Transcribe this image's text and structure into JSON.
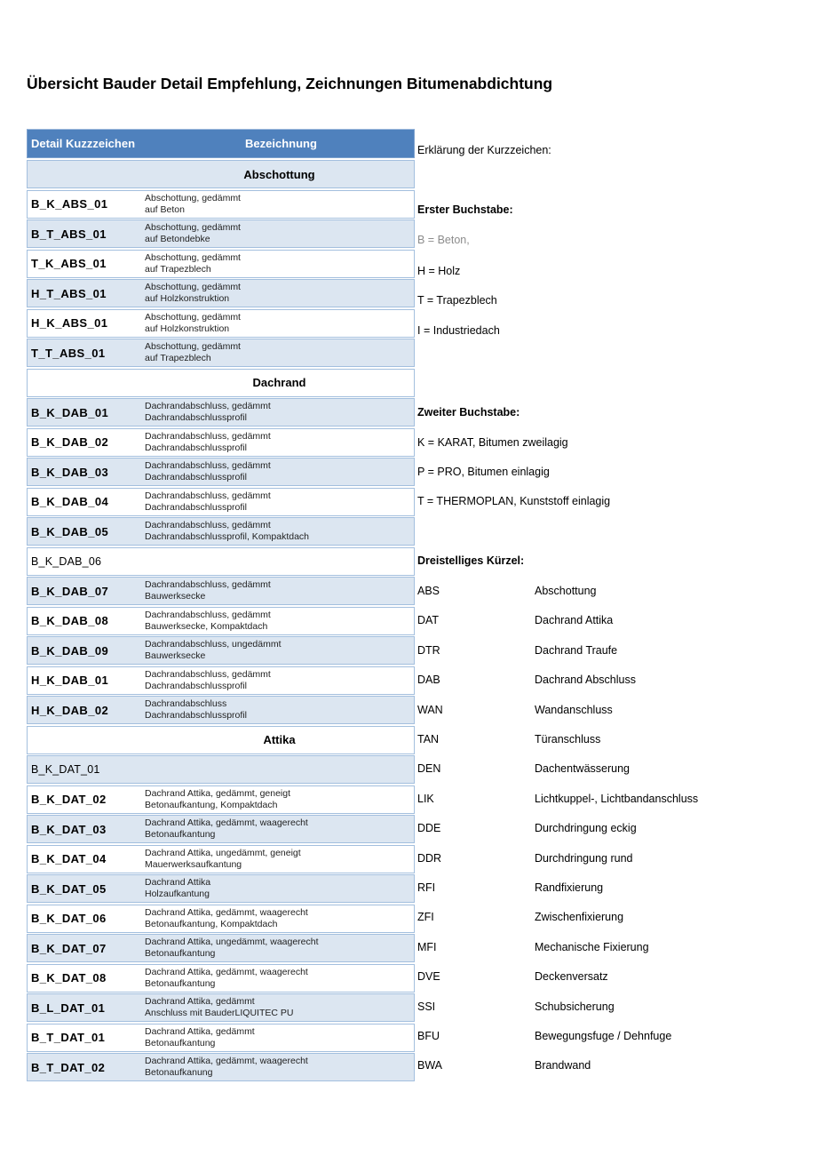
{
  "page": {
    "title": "Übersicht Bauder Detail Empfehlung, Zeichnungen Bitumenabdichtung"
  },
  "table": {
    "header": {
      "col1": "Detail Kuzzzeichen",
      "col2": "Bezeichnung"
    },
    "rows": [
      {
        "kind": "section",
        "label": "Abschottung",
        "shade": true
      },
      {
        "kind": "item",
        "code": "B_K_ABS_01",
        "bold": true,
        "shade": false,
        "lines": [
          "Abschottung, gedämmt",
          "auf Beton"
        ]
      },
      {
        "kind": "item",
        "code": "B_T_ABS_01",
        "bold": true,
        "shade": true,
        "lines": [
          "Abschottung, gedämmt",
          "auf Betondebke"
        ]
      },
      {
        "kind": "item",
        "code": "T_K_ABS_01",
        "bold": true,
        "shade": false,
        "lines": [
          "Abschottung, gedämmt",
          "auf Trapezblech"
        ]
      },
      {
        "kind": "item",
        "code": "H_T_ABS_01",
        "bold": true,
        "shade": true,
        "lines": [
          "Abschottung, gedämmt",
          "auf Holzkonstruktion"
        ]
      },
      {
        "kind": "item",
        "code": "H_K_ABS_01",
        "bold": true,
        "shade": false,
        "lines": [
          "Abschottung, gedämmt",
          "auf Holzkonstruktion"
        ]
      },
      {
        "kind": "item",
        "code": "T_T_ABS_01",
        "bold": true,
        "shade": true,
        "lines": [
          "Abschottung, gedämmt",
          "auf Trapezblech"
        ]
      },
      {
        "kind": "section",
        "label": "Dachrand",
        "shade": false
      },
      {
        "kind": "item",
        "code": "B_K_DAB_01",
        "bold": true,
        "shade": true,
        "lines": [
          "Dachrandabschluss, gedämmt",
          "Dachrandabschlussprofil"
        ]
      },
      {
        "kind": "item",
        "code": "B_K_DAB_02",
        "bold": true,
        "shade": false,
        "lines": [
          "Dachrandabschluss, gedämmt",
          "Dachrandabschlussprofil"
        ]
      },
      {
        "kind": "item",
        "code": "B_K_DAB_03",
        "bold": true,
        "shade": true,
        "lines": [
          "Dachrandabschluss, gedämmt",
          "Dachrandabschlussprofil"
        ]
      },
      {
        "kind": "item",
        "code": "B_K_DAB_04",
        "bold": true,
        "shade": false,
        "lines": [
          "Dachrandabschluss, gedämmt",
          "Dachrandabschlussprofil"
        ]
      },
      {
        "kind": "item",
        "code": "B_K_DAB_05",
        "bold": true,
        "shade": true,
        "lines": [
          "Dachrandabschluss, gedämmt",
          "Dachrandabschlussprofil, Kompaktdach"
        ]
      },
      {
        "kind": "item",
        "code": "B_K_DAB_06",
        "bold": false,
        "shade": false,
        "lines": []
      },
      {
        "kind": "item",
        "code": "B_K_DAB_07",
        "bold": true,
        "shade": true,
        "lines": [
          "Dachrandabschluss, gedämmt",
          "Bauwerksecke"
        ]
      },
      {
        "kind": "item",
        "code": "B_K_DAB_08",
        "bold": true,
        "shade": false,
        "lines": [
          "Dachrandabschluss, gedämmt",
          "Bauwerksecke, Kompaktdach"
        ]
      },
      {
        "kind": "item",
        "code": "B_K_DAB_09",
        "bold": true,
        "shade": true,
        "lines": [
          "Dachrandabschluss, ungedämmt",
          "Bauwerksecke"
        ]
      },
      {
        "kind": "item",
        "code": "H_K_DAB_01",
        "bold": true,
        "shade": false,
        "lines": [
          "Dachrandabschluss, gedämmt",
          "Dachrandabschlussprofil"
        ]
      },
      {
        "kind": "item",
        "code": "H_K_DAB_02",
        "bold": true,
        "shade": true,
        "lines": [
          "Dachrandabschluss",
          "Dachrandabschlussprofil"
        ]
      },
      {
        "kind": "section",
        "label": "Attika",
        "shade": false
      },
      {
        "kind": "item",
        "code": "B_K_DAT_01",
        "bold": false,
        "shade": true,
        "lines": []
      },
      {
        "kind": "item",
        "code": "B_K_DAT_02",
        "bold": true,
        "shade": false,
        "lines": [
          "Dachrand Attika, gedämmt, geneigt",
          "Betonaufkantung, Kompaktdach"
        ]
      },
      {
        "kind": "item",
        "code": "B_K_DAT_03",
        "bold": true,
        "shade": true,
        "lines": [
          "Dachrand Attika, gedämmt, waagerecht",
          "Betonaufkantung"
        ]
      },
      {
        "kind": "item",
        "code": "B_K_DAT_04",
        "bold": true,
        "shade": false,
        "lines": [
          "Dachrand Attika, ungedämmt, geneigt",
          "Mauerwerksaufkantung"
        ]
      },
      {
        "kind": "item",
        "code": "B_K_DAT_05",
        "bold": true,
        "shade": true,
        "lines": [
          "Dachrand Attika",
          "Holzaufkantung"
        ]
      },
      {
        "kind": "item",
        "code": "B_K_DAT_06",
        "bold": true,
        "shade": false,
        "lines": [
          "Dachrand Attika, gedämmt, waagerecht",
          "Betonaufkantung, Kompaktdach"
        ]
      },
      {
        "kind": "item",
        "code": "B_K_DAT_07",
        "bold": true,
        "shade": true,
        "lines": [
          "Dachrand Attika, ungedämmt, waagerecht",
          "Betonaufkantung"
        ]
      },
      {
        "kind": "item",
        "code": "B_K_DAT_08",
        "bold": true,
        "shade": false,
        "lines": [
          "Dachrand Attika, gedämmt, waagerecht",
          "Betonaufkantung"
        ]
      },
      {
        "kind": "item",
        "code": "B_L_DAT_01",
        "bold": true,
        "shade": true,
        "lines": [
          "Dachrand Attika, gedämmt",
          "Anschluss mit BauderLIQUITEC PU"
        ]
      },
      {
        "kind": "item",
        "code": "B_T_DAT_01",
        "bold": true,
        "shade": false,
        "lines": [
          "Dachrand Attika, gedämmt",
          "Betonaufkantung"
        ]
      },
      {
        "kind": "item",
        "code": "B_T_DAT_02",
        "bold": true,
        "shade": true,
        "lines": [
          "Dachrand Attika, gedämmt, waagerecht",
          "Betonaufkanung"
        ]
      }
    ]
  },
  "legend": {
    "intro": "Erklärung der Kurzzeichen:",
    "first_letter": {
      "heading": "Erster Buchstabe:",
      "items": [
        {
          "text": "B = Beton,",
          "muted": true
        },
        {
          "text": "H = Holz",
          "muted": false
        },
        {
          "text": "T = Trapezblech",
          "muted": false
        },
        {
          "text": "I = Industriedach",
          "muted": false
        }
      ]
    },
    "second_letter": {
      "heading": "Zweiter Buchstabe:",
      "items": [
        {
          "text": "K = KARAT, Bitumen zweilagig",
          "muted": false
        },
        {
          "text": "P = PRO, Bitumen einlagig",
          "muted": false
        },
        {
          "text": "T = THERMOPLAN, Kunststoff einlagig",
          "muted": false
        }
      ]
    },
    "three_letter": {
      "heading": "Dreistelliges Kürzel:",
      "codes": [
        {
          "code": "ABS",
          "label": "Abschottung"
        },
        {
          "code": "DAT",
          "label": "Dachrand Attika"
        },
        {
          "code": "DTR",
          "label": "Dachrand Traufe"
        },
        {
          "code": "DAB",
          "label": "Dachrand Abschluss"
        },
        {
          "code": "WAN",
          "label": "Wandanschluss"
        },
        {
          "code": "TAN",
          "label": "Türanschluss"
        },
        {
          "code": "DEN",
          "label": "Dachentwässerung"
        },
        {
          "code": "LIK",
          "label": "Lichtkuppel-, Lichtbandanschluss"
        },
        {
          "code": "DDE",
          "label": "Durchdringung eckig"
        },
        {
          "code": "DDR",
          "label": "Durchdringung rund"
        },
        {
          "code": "RFI",
          "label": "Randfixierung"
        },
        {
          "code": "ZFI",
          "label": "Zwischenfixierung"
        },
        {
          "code": "MFI",
          "label": "Mechanische Fixierung"
        },
        {
          "code": "DVE",
          "label": "Deckenversatz"
        },
        {
          "code": "SSI",
          "label": "Schubsicherung"
        },
        {
          "code": "BFU",
          "label": "Bewegungsfuge / Dehnfuge"
        },
        {
          "code": "BWA",
          "label": "Brandwand"
        }
      ]
    }
  },
  "colors": {
    "header_bg": "#4F81BD",
    "row_shade": "#DCE6F1",
    "row_border": "#A3BFDE",
    "muted_text": "#8C8C8C"
  }
}
